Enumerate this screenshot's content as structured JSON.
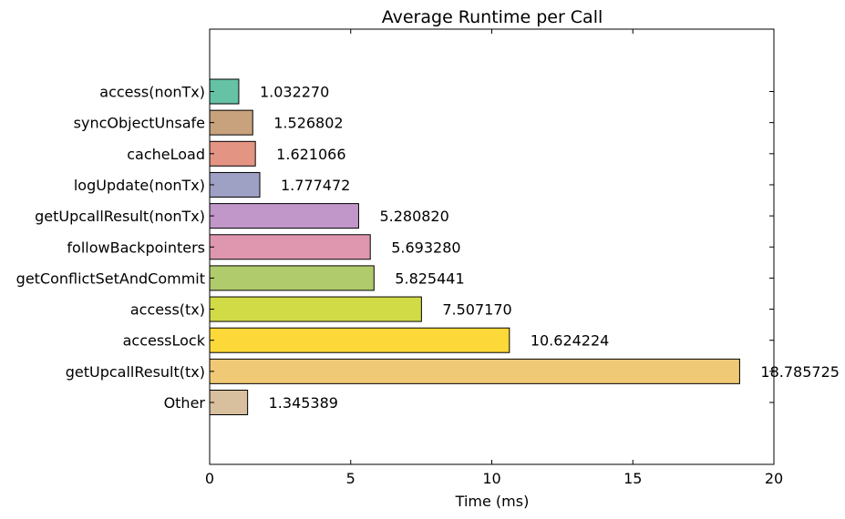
{
  "chart_data": {
    "type": "bar",
    "orientation": "horizontal",
    "title": "Average Runtime per Call",
    "xlabel": "Time (ms)",
    "ylabel": "",
    "xlim": [
      0,
      20
    ],
    "xticks": [
      "0",
      "5",
      "10",
      "15",
      "20"
    ],
    "grid": false,
    "categories": [
      "access(nonTx)",
      "syncObjectUnsafe",
      "cacheLoad",
      "logUpdate(nonTx)",
      "getUpcallResult(nonTx)",
      "followBackpointers",
      "getConflictSetAndCommit",
      "access(tx)",
      "accessLock",
      "getUpcallResult(tx)",
      "Other"
    ],
    "values": [
      1.03227,
      1.526802,
      1.621066,
      1.777472,
      5.28082,
      5.69328,
      5.825441,
      7.50717,
      10.624224,
      18.785725,
      1.345389
    ],
    "value_labels": [
      "1.032270",
      "1.526802",
      "1.621066",
      "1.777472",
      "5.280820",
      "5.693280",
      "5.825441",
      "7.507170",
      "10.624224",
      "18.785725",
      "1.345389"
    ],
    "colors": [
      "#66c2a5",
      "#c8a27c",
      "#e49483",
      "#9ea0c4",
      "#c197c9",
      "#de97ae",
      "#b0cb6b",
      "#d0db46",
      "#fcd838",
      "#efc975",
      "#d8bf9d"
    ]
  }
}
